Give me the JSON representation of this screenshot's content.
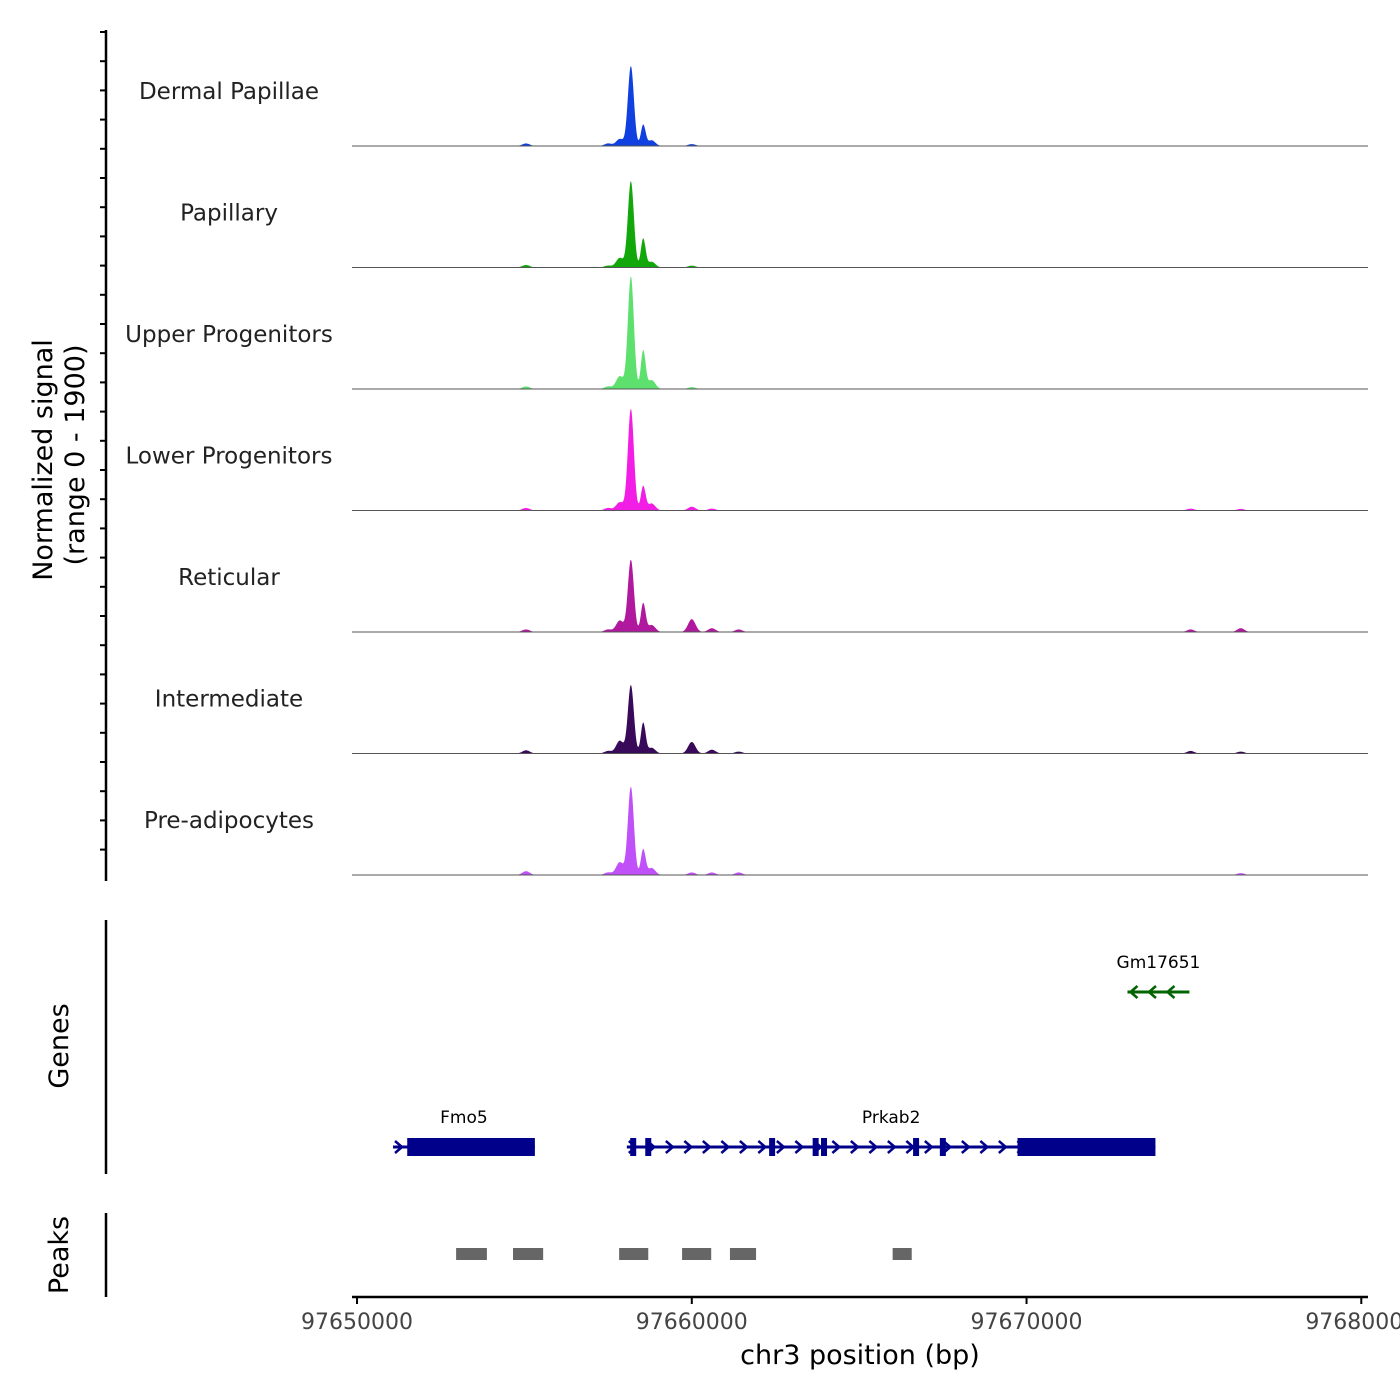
{
  "chart_data": {
    "type": "area",
    "ylabel": "Normalized signal\n(range 0 - 1900)",
    "ylabel_lines": [
      "Normalized signal",
      "(range 0 - 1900)"
    ],
    "ylim": [
      0,
      1900
    ],
    "xlabel": "chr3 position (bp)",
    "xlim": [
      97649850,
      97680200
    ],
    "xticks": [
      97650000,
      97660000,
      97670000,
      97680000
    ],
    "xtick_labels": [
      "97650000",
      "97660000",
      "97670000",
      "97680000"
    ],
    "tracks": [
      {
        "name": "Dermal Papillae",
        "color": "#1040e0",
        "peaks": [
          [
            97658180,
            1250
          ],
          [
            97658550,
            330
          ],
          [
            97657850,
            110
          ],
          [
            97658800,
            90
          ],
          [
            97655050,
            40
          ],
          [
            97660000,
            30
          ],
          [
            97657500,
            40
          ]
        ]
      },
      {
        "name": "Papillary",
        "color": "#12a80c",
        "peaks": [
          [
            97658180,
            1350
          ],
          [
            97658550,
            450
          ],
          [
            97657850,
            150
          ],
          [
            97658800,
            90
          ],
          [
            97655050,
            40
          ],
          [
            97660000,
            30
          ],
          [
            97657500,
            30
          ]
        ]
      },
      {
        "name": "Upper Progenitors",
        "color": "#5ee06e",
        "peaks": [
          [
            97658180,
            1760
          ],
          [
            97658550,
            600
          ],
          [
            97657850,
            200
          ],
          [
            97658800,
            140
          ],
          [
            97655050,
            40
          ],
          [
            97660000,
            30
          ],
          [
            97657500,
            40
          ]
        ]
      },
      {
        "name": "Lower Progenitors",
        "color": "#f21ee6",
        "peaks": [
          [
            97658180,
            1590
          ],
          [
            97658550,
            380
          ],
          [
            97657850,
            130
          ],
          [
            97658800,
            110
          ],
          [
            97655050,
            40
          ],
          [
            97660000,
            60
          ],
          [
            97660600,
            30
          ],
          [
            97674900,
            30
          ],
          [
            97676400,
            25
          ],
          [
            97657500,
            40
          ]
        ]
      },
      {
        "name": "Reticular",
        "color": "#b0189e",
        "peaks": [
          [
            97658180,
            1130
          ],
          [
            97658550,
            450
          ],
          [
            97657850,
            180
          ],
          [
            97658800,
            110
          ],
          [
            97655050,
            40
          ],
          [
            97660000,
            200
          ],
          [
            97660600,
            60
          ],
          [
            97661400,
            40
          ],
          [
            97674900,
            40
          ],
          [
            97676400,
            60
          ],
          [
            97657500,
            40
          ]
        ]
      },
      {
        "name": "Intermediate",
        "color": "#3a0a5a",
        "peaks": [
          [
            97658180,
            1070
          ],
          [
            97658550,
            480
          ],
          [
            97657850,
            200
          ],
          [
            97658800,
            90
          ],
          [
            97655050,
            50
          ],
          [
            97660000,
            180
          ],
          [
            97660600,
            60
          ],
          [
            97661400,
            30
          ],
          [
            97674900,
            40
          ],
          [
            97676400,
            30
          ],
          [
            97657500,
            40
          ]
        ]
      },
      {
        "name": "Pre-adipocytes",
        "color": "#c050f8",
        "peaks": [
          [
            97658180,
            1380
          ],
          [
            97658550,
            400
          ],
          [
            97657850,
            200
          ],
          [
            97658800,
            110
          ],
          [
            97655050,
            60
          ],
          [
            97660000,
            40
          ],
          [
            97660600,
            40
          ],
          [
            97661400,
            40
          ],
          [
            97676400,
            30
          ],
          [
            97657500,
            40
          ]
        ]
      }
    ],
    "genes_label": "Genes",
    "genes": [
      {
        "name": "Fmo5",
        "strand": "+",
        "color": "#00008b",
        "start": 97651075,
        "end": 97655313,
        "thick": [
          [
            97651500,
            97655313
          ]
        ],
        "exons": []
      },
      {
        "name": "Prkab2",
        "strand": "+",
        "color": "#00008b",
        "start": 97658060,
        "end": 97673850,
        "thick": [
          [
            97669730,
            97673850
          ]
        ],
        "exons": [
          97658250,
          97658700,
          97662400,
          97663700,
          97663950,
          97666700,
          97667500
        ]
      },
      {
        "name": "Gm17651",
        "strand": "-",
        "color": "#006400",
        "start": 97673015,
        "end": 97674865,
        "thick": [],
        "exons": []
      }
    ],
    "peaks_label": "Peaks",
    "peak_regions": [
      [
        97652960,
        97653880
      ],
      [
        97654660,
        97655560
      ],
      [
        97657830,
        97658700
      ],
      [
        97659710,
        97660580
      ],
      [
        97661140,
        97661920
      ],
      [
        97666000,
        97666570
      ]
    ]
  }
}
